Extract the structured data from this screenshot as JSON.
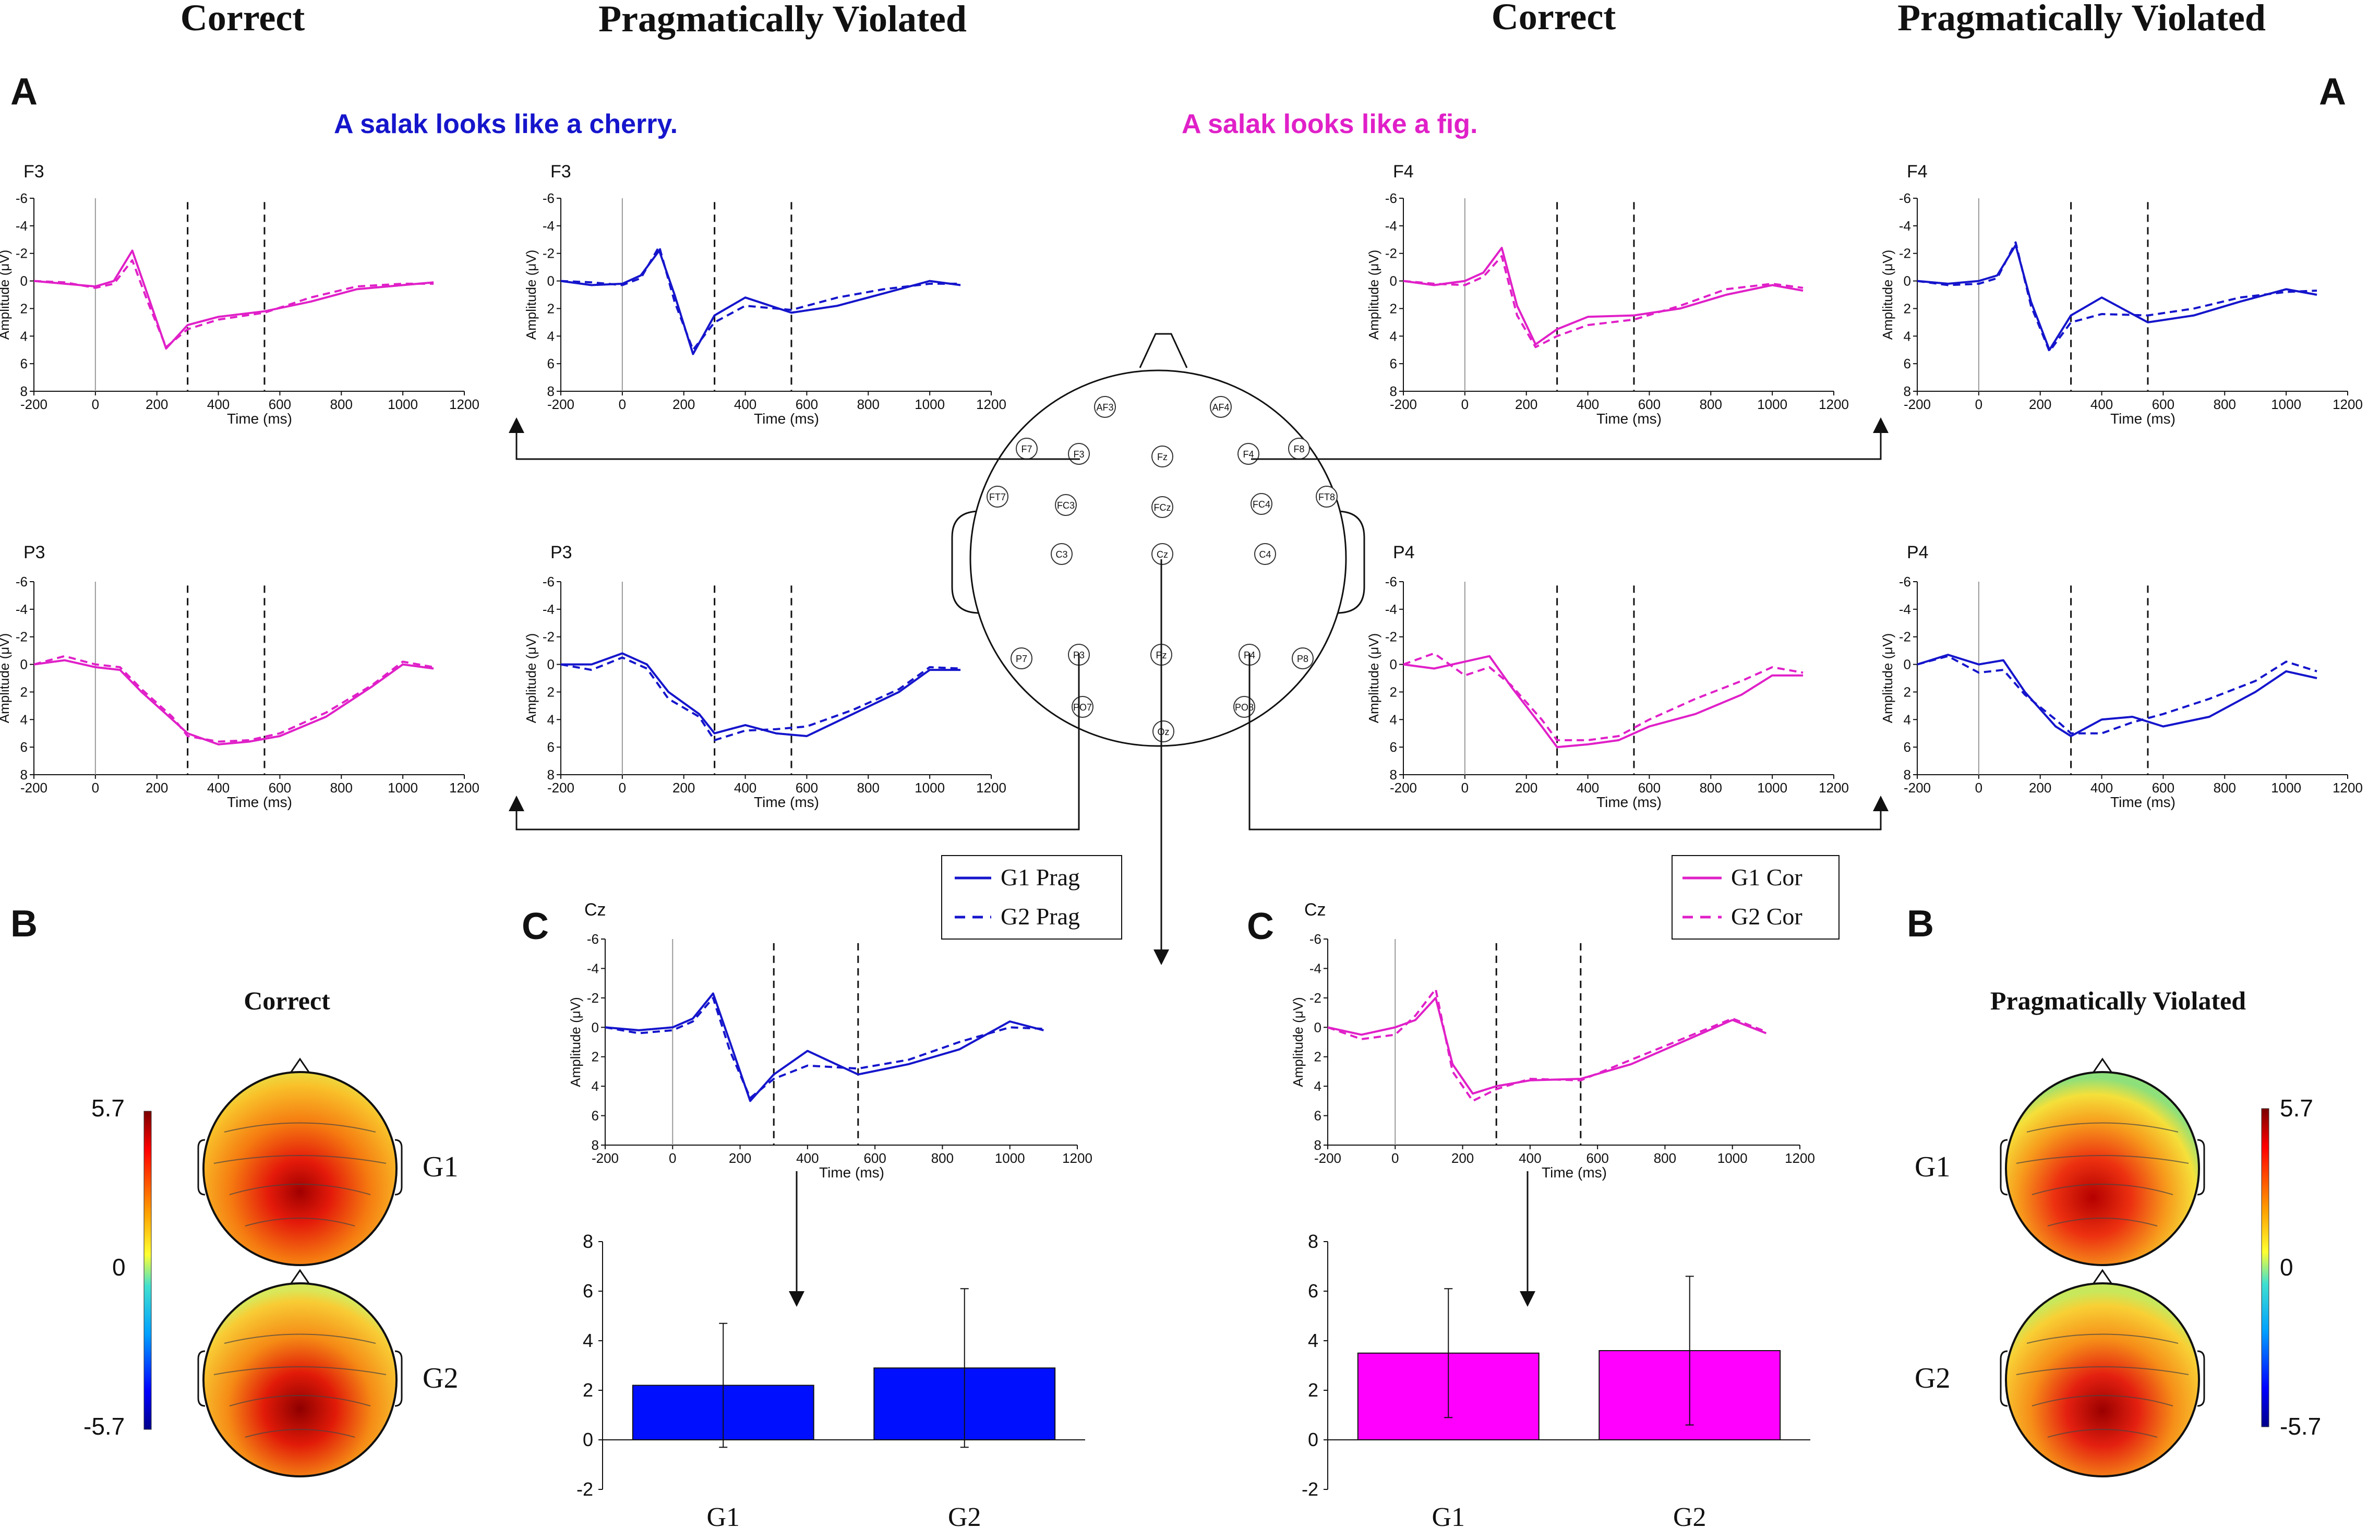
{
  "header": {
    "col1": "Correct",
    "col2": "Pragmatically Violated",
    "col3": "Correct",
    "col4": "Pragmatically Violated"
  },
  "panel_letters": {
    "a": "A",
    "b": "B",
    "c": "C"
  },
  "sentences": {
    "prag": "A salak looks like a cherry.",
    "cor": "A salak looks like a fig."
  },
  "colors": {
    "prag": "#1515cc",
    "cor": "#e020c8",
    "bar_prag": "#0010ff",
    "bar_cor": "#ff00ff"
  },
  "erp_axes": {
    "xlabel": "Time (ms)",
    "ylabel": "Amplitude (μV)",
    "xticks": [
      -200,
      0,
      200,
      400,
      600,
      800,
      1000,
      1200
    ],
    "yticks": [
      -6,
      -4,
      -2,
      0,
      2,
      4,
      6,
      8
    ],
    "xlim": [
      -200,
      1200
    ],
    "ylim": [
      -6,
      8
    ],
    "window_ms": [
      300,
      550
    ]
  },
  "legend_prag": {
    "g1": "G1 Prag",
    "g2": "G2 Prag"
  },
  "legend_cor": {
    "g1": "G1 Cor",
    "g2": "G2 Cor"
  },
  "topo": {
    "title_left": "Correct",
    "title_right": "Pragmatically Violated",
    "g1": "G1",
    "g2": "G2",
    "scale_max": "5.7",
    "scale_mid": "0",
    "scale_min": "-5.7"
  },
  "electrodes": [
    "AF3",
    "AF4",
    "F7",
    "F3",
    "Fz",
    "F4",
    "F8",
    "FT7",
    "FC3",
    "FCz",
    "FC4",
    "FT8",
    "C3",
    "Cz",
    "C4",
    "P7",
    "P3",
    "Pz",
    "P4",
    "P8",
    "PO7",
    "PO8",
    "Oz"
  ],
  "chart_data": [
    {
      "type": "line",
      "id": "f3-correct",
      "channel": "F3",
      "condition": "Correct",
      "x": [
        -200,
        -100,
        0,
        60,
        120,
        170,
        230,
        300,
        400,
        550,
        700,
        850,
        1000,
        1100
      ],
      "series": [
        {
          "name": "G1 Cor",
          "style": "solid",
          "values": [
            0,
            0.2,
            0.4,
            0,
            -2.2,
            1,
            4.9,
            3.2,
            2.6,
            2.2,
            1.5,
            0.6,
            0.3,
            0.1
          ]
        },
        {
          "name": "G2 Cor",
          "style": "dashed",
          "values": [
            0,
            0.1,
            0.5,
            0.2,
            -1.5,
            1.5,
            4.8,
            3.5,
            2.8,
            2.3,
            1.2,
            0.4,
            0.2,
            0.2
          ]
        }
      ]
    },
    {
      "type": "line",
      "id": "f3-prag",
      "channel": "F3",
      "condition": "Pragmatically Violated",
      "x": [
        -200,
        -100,
        0,
        60,
        120,
        170,
        230,
        300,
        400,
        550,
        700,
        850,
        1000,
        1100
      ],
      "series": [
        {
          "name": "G1 Prag",
          "style": "solid",
          "values": [
            0,
            0.3,
            0.2,
            -0.4,
            -2.2,
            1,
            5.3,
            2.5,
            1.2,
            2.3,
            1.8,
            0.9,
            0,
            0.3
          ]
        },
        {
          "name": "G2 Prag",
          "style": "dashed",
          "values": [
            0,
            0.1,
            0.3,
            -0.2,
            -2.5,
            1.5,
            5,
            3,
            1.8,
            2.1,
            1.2,
            0.6,
            0.2,
            0.2
          ]
        }
      ]
    },
    {
      "type": "line",
      "id": "f4-correct",
      "channel": "F4",
      "condition": "Correct",
      "x": [
        -200,
        -100,
        0,
        60,
        120,
        170,
        230,
        300,
        400,
        550,
        700,
        850,
        1000,
        1100
      ],
      "series": [
        {
          "name": "G1 Cor",
          "style": "solid",
          "values": [
            0,
            0.3,
            0,
            -0.6,
            -2.4,
            1.8,
            4.6,
            3.5,
            2.6,
            2.5,
            2,
            1,
            0.3,
            0.7
          ]
        },
        {
          "name": "G2 Cor",
          "style": "dashed",
          "values": [
            0,
            0.2,
            0.3,
            -0.3,
            -1.8,
            2.5,
            4.8,
            4,
            3.2,
            2.8,
            1.8,
            0.6,
            0.2,
            0.5
          ]
        }
      ]
    },
    {
      "type": "line",
      "id": "f4-prag",
      "channel": "F4",
      "condition": "Pragmatically Violated",
      "x": [
        -200,
        -100,
        0,
        60,
        120,
        170,
        230,
        300,
        400,
        550,
        700,
        850,
        1000,
        1100
      ],
      "series": [
        {
          "name": "G1 Prag",
          "style": "solid",
          "values": [
            0,
            0.2,
            0,
            -0.4,
            -2.6,
            1.5,
            5,
            2.5,
            1.2,
            3,
            2.5,
            1.5,
            0.6,
            1
          ]
        },
        {
          "name": "G2 Prag",
          "style": "dashed",
          "values": [
            0,
            0.3,
            0.2,
            -0.2,
            -2.8,
            1.8,
            5.1,
            3,
            2.4,
            2.5,
            2,
            1.2,
            0.8,
            0.7
          ]
        }
      ]
    },
    {
      "type": "line",
      "id": "p3-correct",
      "channel": "P3",
      "condition": "Correct",
      "x": [
        -200,
        -100,
        0,
        80,
        150,
        250,
        300,
        400,
        500,
        600,
        750,
        900,
        1000,
        1100
      ],
      "series": [
        {
          "name": "G1 Cor",
          "style": "solid",
          "values": [
            0,
            -0.3,
            0.2,
            0.4,
            2,
            4,
            5,
            5.8,
            5.6,
            5.2,
            3.8,
            1.6,
            0,
            0.3
          ]
        },
        {
          "name": "G2 Cor",
          "style": "dashed",
          "values": [
            0,
            -0.6,
            0,
            0.2,
            1.8,
            3.8,
            5.2,
            5.6,
            5.5,
            5,
            3.5,
            1.5,
            -0.2,
            0.2
          ]
        }
      ]
    },
    {
      "type": "line",
      "id": "p3-prag",
      "channel": "P3",
      "condition": "Pragmatically Violated",
      "x": [
        -200,
        -100,
        0,
        80,
        150,
        250,
        300,
        400,
        500,
        600,
        750,
        900,
        1000,
        1100
      ],
      "series": [
        {
          "name": "G1 Prag",
          "style": "solid",
          "values": [
            0,
            0,
            -0.8,
            0,
            2,
            3.6,
            5,
            4.4,
            5,
            5.2,
            3.6,
            2,
            0.4,
            0.4
          ]
        },
        {
          "name": "G2 Prag",
          "style": "dashed",
          "values": [
            0,
            0.4,
            -0.5,
            0.3,
            2.5,
            3.8,
            5.5,
            4.8,
            4.7,
            4.5,
            3.3,
            1.8,
            0.2,
            0.3
          ]
        }
      ]
    },
    {
      "type": "line",
      "id": "p4-correct",
      "channel": "P4",
      "condition": "Correct",
      "x": [
        -200,
        -100,
        0,
        80,
        150,
        250,
        300,
        400,
        500,
        600,
        750,
        900,
        1000,
        1100
      ],
      "series": [
        {
          "name": "G1 Cor",
          "style": "solid",
          "values": [
            0,
            0.3,
            -0.2,
            -0.6,
            1.6,
            4.5,
            6,
            5.8,
            5.5,
            4.5,
            3.6,
            2.2,
            0.8,
            0.8
          ]
        },
        {
          "name": "G2 Cor",
          "style": "dashed",
          "values": [
            0,
            -0.8,
            0.8,
            0.2,
            1.5,
            4,
            5.5,
            5.5,
            5.2,
            4,
            2.5,
            1.2,
            0.2,
            0.6
          ]
        }
      ]
    },
    {
      "type": "line",
      "id": "p4-prag",
      "channel": "P4",
      "condition": "Pragmatically Violated",
      "x": [
        -200,
        -100,
        0,
        80,
        150,
        250,
        300,
        400,
        500,
        600,
        750,
        900,
        1000,
        1100
      ],
      "series": [
        {
          "name": "G1 Prag",
          "style": "solid",
          "values": [
            0,
            -0.7,
            0,
            -0.3,
            2,
            4.5,
            5.2,
            4,
            3.8,
            4.5,
            3.8,
            2,
            0.5,
            1
          ]
        },
        {
          "name": "G2 Prag",
          "style": "dashed",
          "values": [
            0,
            -0.6,
            0.6,
            0.4,
            2.2,
            4,
            5,
            5,
            4.2,
            3.6,
            2.5,
            1.2,
            -0.2,
            0.5
          ]
        }
      ]
    },
    {
      "type": "line",
      "id": "cz-prag",
      "channel": "Cz",
      "condition": "Pragmatically Violated",
      "x": [
        -200,
        -100,
        0,
        60,
        120,
        170,
        230,
        300,
        400,
        550,
        700,
        850,
        1000,
        1100
      ],
      "series": [
        {
          "name": "G1 Prag",
          "style": "solid",
          "values": [
            0,
            0.2,
            0,
            -0.6,
            -2.3,
            1,
            5,
            3.2,
            1.6,
            3.2,
            2.5,
            1.5,
            -0.4,
            0.2
          ]
        },
        {
          "name": "G2 Prag",
          "style": "dashed",
          "values": [
            0,
            0.4,
            0.2,
            -0.4,
            -2,
            1.6,
            4.8,
            3.5,
            2.6,
            2.8,
            2.2,
            1,
            0,
            0.1
          ]
        }
      ]
    },
    {
      "type": "line",
      "id": "cz-correct",
      "channel": "Cz",
      "condition": "Correct",
      "x": [
        -200,
        -100,
        0,
        60,
        120,
        170,
        230,
        300,
        400,
        550,
        700,
        850,
        1000,
        1100
      ],
      "series": [
        {
          "name": "G1 Cor",
          "style": "solid",
          "values": [
            0,
            0.5,
            0,
            -0.5,
            -2,
            2.5,
            4.5,
            4,
            3.6,
            3.5,
            2.5,
            1,
            -0.5,
            0.4
          ]
        },
        {
          "name": "G2 Cor",
          "style": "dashed",
          "values": [
            0,
            0.8,
            0.5,
            -0.8,
            -2.6,
            3,
            5,
            4.2,
            3.5,
            3.6,
            2.2,
            0.8,
            -0.6,
            0.3
          ]
        }
      ]
    },
    {
      "type": "bar",
      "id": "bar-prag",
      "categories": [
        "G1",
        "G2"
      ],
      "values": [
        2.2,
        2.9
      ],
      "errors": [
        2.5,
        3.2
      ],
      "ylim": [
        -2,
        8
      ],
      "yticks": [
        -2,
        0,
        2,
        4,
        6,
        8
      ]
    },
    {
      "type": "bar",
      "id": "bar-cor",
      "categories": [
        "G1",
        "G2"
      ],
      "values": [
        3.5,
        3.6
      ],
      "errors": [
        2.6,
        3
      ],
      "ylim": [
        -2,
        8
      ],
      "yticks": [
        -2,
        0,
        2,
        4,
        6,
        8
      ]
    }
  ]
}
